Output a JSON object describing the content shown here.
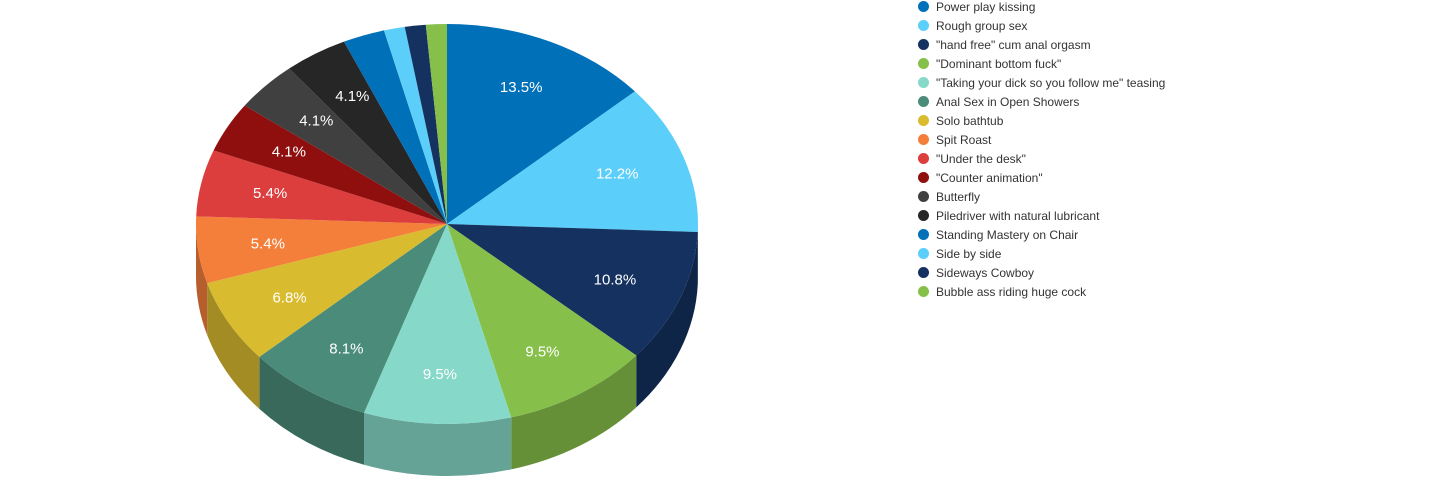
{
  "chart_data": {
    "type": "pie",
    "style": "3d",
    "legend_position": "right",
    "slices": [
      {
        "label": "Power play kissing",
        "value": 13.5,
        "display": "13.5%",
        "color": "#0070b8"
      },
      {
        "label": "Rough group sex",
        "value": 12.2,
        "display": "12.2%",
        "color": "#5bcffa"
      },
      {
        "label": "\"hand free\" cum anal orgasm",
        "value": 10.8,
        "display": "10.8%",
        "color": "#14315f"
      },
      {
        "label": "\"Dominant bottom fuck\"",
        "value": 9.5,
        "display": "9.5%",
        "color": "#86c04b"
      },
      {
        "label": "\"Taking your dick so you follow me\" teasing",
        "value": 9.5,
        "display": "9.5%",
        "color": "#86d9c8"
      },
      {
        "label": "Anal Sex in Open Showers",
        "value": 8.1,
        "display": "8.1%",
        "color": "#4a8c79"
      },
      {
        "label": "Solo bathtub",
        "value": 6.8,
        "display": "6.8%",
        "color": "#d9bb2f"
      },
      {
        "label": "Spit Roast",
        "value": 5.4,
        "display": "5.4%",
        "color": "#f47f3a"
      },
      {
        "label": "\"Under the desk\"",
        "value": 5.4,
        "display": "5.4%",
        "color": "#dc3d3d"
      },
      {
        "label": "\"Counter animation\"",
        "value": 4.1,
        "display": "4.1%",
        "color": "#8f0f0f"
      },
      {
        "label": "Butterfly",
        "value": 4.1,
        "display": "4.1%",
        "color": "#404040"
      },
      {
        "label": "Piledriver with natural lubricant",
        "value": 4.1,
        "display": "4.1%",
        "color": "#262626"
      },
      {
        "label": "Standing Mastery on Chair",
        "value": 2.7,
        "display": "",
        "color": "#0070b8"
      },
      {
        "label": "Side by side",
        "value": 1.35,
        "display": "",
        "color": "#5bcffa"
      },
      {
        "label": "Sideways Cowboy",
        "value": 1.35,
        "display": "",
        "color": "#14315f"
      },
      {
        "label": "Bubble ass riding huge cock",
        "value": 1.35,
        "display": "",
        "color": "#86c04b"
      }
    ]
  }
}
